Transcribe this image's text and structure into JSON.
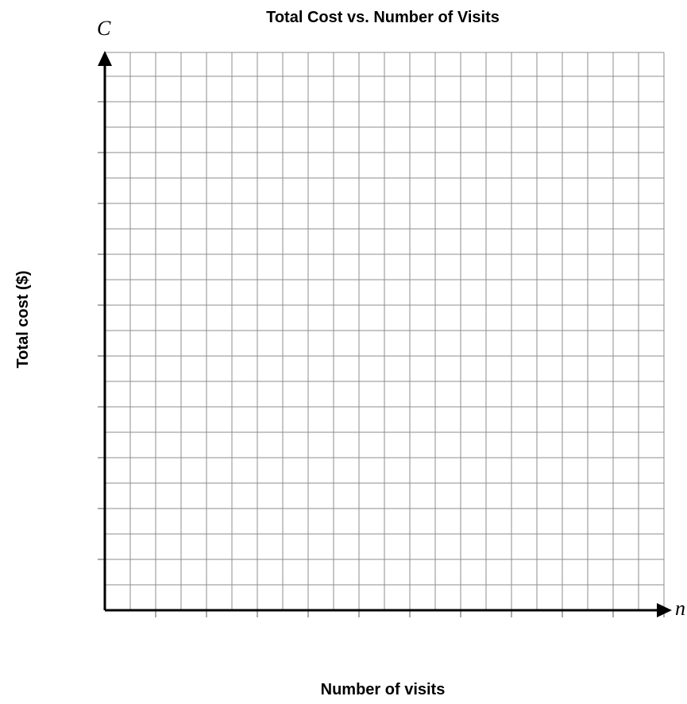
{
  "chart_data": {
    "type": "scatter",
    "title": "Total Cost vs. Number of Visits",
    "xlabel": "Number of visits",
    "ylabel": "Total cost ($)",
    "x_variable": "n",
    "y_variable": "C",
    "series": [],
    "grid": true,
    "x_grid_cells": 22,
    "y_grid_cells": 21,
    "x_major_every": 2,
    "y_major_every": 2,
    "tick_labels": false
  }
}
